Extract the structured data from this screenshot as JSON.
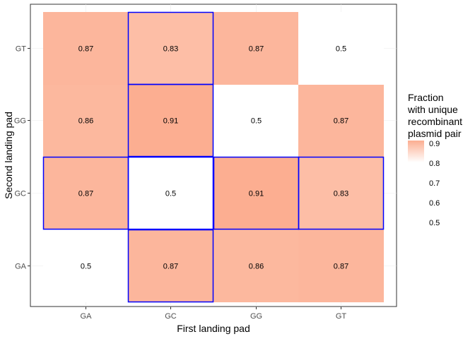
{
  "chart_data": {
    "type": "heatmap",
    "xlabel": "First landing pad",
    "ylabel": "Second landing pad",
    "x_categories": [
      "GA",
      "GC",
      "GG",
      "GT"
    ],
    "y_categories": [
      "GA",
      "GC",
      "GG",
      "GT"
    ],
    "cells": [
      {
        "x": "GA",
        "y": "GA",
        "value": 0.5,
        "label": "0.5"
      },
      {
        "x": "GC",
        "y": "GA",
        "value": 0.87,
        "label": "0.87"
      },
      {
        "x": "GG",
        "y": "GA",
        "value": 0.86,
        "label": "0.86"
      },
      {
        "x": "GT",
        "y": "GA",
        "value": 0.87,
        "label": "0.87"
      },
      {
        "x": "GA",
        "y": "GC",
        "value": 0.87,
        "label": "0.87"
      },
      {
        "x": "GC",
        "y": "GC",
        "value": 0.5,
        "label": "0.5"
      },
      {
        "x": "GG",
        "y": "GC",
        "value": 0.91,
        "label": "0.91"
      },
      {
        "x": "GT",
        "y": "GC",
        "value": 0.83,
        "label": "0.83"
      },
      {
        "x": "GA",
        "y": "GG",
        "value": 0.86,
        "label": "0.86"
      },
      {
        "x": "GC",
        "y": "GG",
        "value": 0.91,
        "label": "0.91"
      },
      {
        "x": "GG",
        "y": "GG",
        "value": 0.5,
        "label": "0.5"
      },
      {
        "x": "GT",
        "y": "GG",
        "value": 0.87,
        "label": "0.87"
      },
      {
        "x": "GA",
        "y": "GT",
        "value": 0.87,
        "label": "0.87"
      },
      {
        "x": "GC",
        "y": "GT",
        "value": 0.83,
        "label": "0.83"
      },
      {
        "x": "GG",
        "y": "GT",
        "value": 0.87,
        "label": "0.87"
      },
      {
        "x": "GT",
        "y": "GT",
        "value": 0.5,
        "label": "0.5"
      }
    ],
    "highlighted_cells": [
      {
        "x": "GC",
        "y": "GT"
      },
      {
        "x": "GC",
        "y": "GG"
      },
      {
        "x": "GA",
        "y": "GC"
      },
      {
        "x": "GC",
        "y": "GC"
      },
      {
        "x": "GG",
        "y": "GC"
      },
      {
        "x": "GT",
        "y": "GC"
      },
      {
        "x": "GC",
        "y": "GA"
      }
    ],
    "legend": {
      "title_lines": [
        "Fraction",
        "with unique",
        "recombinant",
        "plasmid pair"
      ],
      "ticks": [
        "0.9",
        "0.8",
        "0.7",
        "0.6",
        "0.5"
      ],
      "placement": "right"
    },
    "color_scale": {
      "low": "#ffffff",
      "high": "#fcae91",
      "min": 0.5,
      "max": 0.91
    },
    "highlight_color": "#0000ff",
    "grid": true
  }
}
